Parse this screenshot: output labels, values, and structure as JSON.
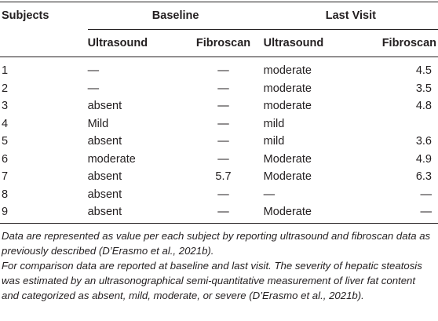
{
  "table": {
    "header": {
      "subjects": "Subjects",
      "baseline": "Baseline",
      "last_visit": "Last Visit",
      "ultrasound": "Ultrasound",
      "fibroscan": "Fibroscan"
    },
    "rows": [
      {
        "subject": "1",
        "b_us": "—",
        "b_fs": "—",
        "l_us": "moderate",
        "l_fs": "4.5"
      },
      {
        "subject": "2",
        "b_us": "—",
        "b_fs": "—",
        "l_us": "moderate",
        "l_fs": "3.5"
      },
      {
        "subject": "3",
        "b_us": "absent",
        "b_fs": "—",
        "l_us": "moderate",
        "l_fs": "4.8"
      },
      {
        "subject": "4",
        "b_us": "Mild",
        "b_fs": "—",
        "l_us": "mild",
        "l_fs": ""
      },
      {
        "subject": "5",
        "b_us": "absent",
        "b_fs": "—",
        "l_us": "mild",
        "l_fs": "3.6"
      },
      {
        "subject": "6",
        "b_us": "moderate",
        "b_fs": "—",
        "l_us": "Moderate",
        "l_fs": "4.9"
      },
      {
        "subject": "7",
        "b_us": "absent",
        "b_fs": "5.7",
        "l_us": "Moderate",
        "l_fs": "6.3"
      },
      {
        "subject": "8",
        "b_us": "absent",
        "b_fs": "—",
        "l_us": "—",
        "l_fs": "—"
      },
      {
        "subject": "9",
        "b_us": "absent",
        "b_fs": "—",
        "l_us": "Moderate",
        "l_fs": "—"
      }
    ]
  },
  "notes": [
    "Data are represented as value per each subject by reporting ultrasound and fibroscan data as previously described (D’Erasmo et al., 2021b).",
    "For comparison data are reported at baseline and last visit. The severity of hepatic steatosis was estimated by an ultrasonographical semi-quantitative measurement of liver fat content and categorized as absent, mild, moderate, or severe (D’Erasmo et al., 2021b)."
  ],
  "colors": {
    "text": "#231f20",
    "background": "#ffffff"
  }
}
